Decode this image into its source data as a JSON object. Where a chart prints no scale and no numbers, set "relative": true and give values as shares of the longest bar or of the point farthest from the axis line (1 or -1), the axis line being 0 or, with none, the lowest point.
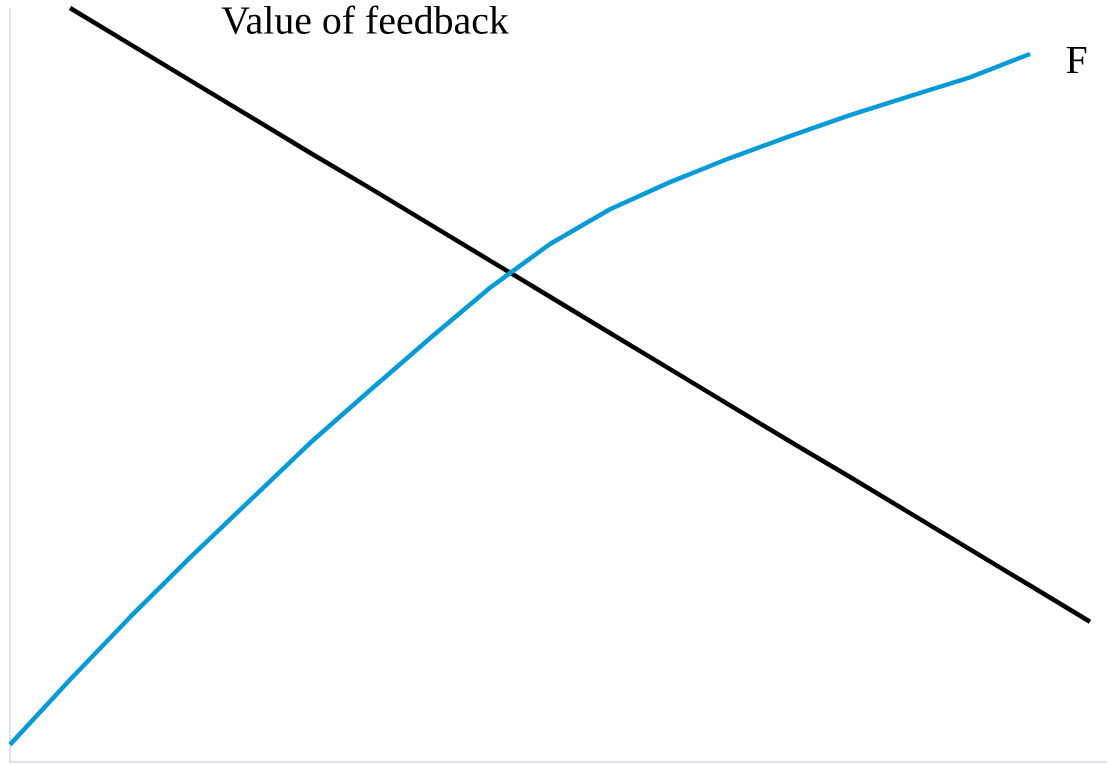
{
  "chart_data": {
    "type": "line",
    "relative": true,
    "categories": [
      null,
      null,
      null,
      null,
      null,
      null,
      null,
      null,
      null,
      null,
      null,
      null,
      null,
      null,
      null,
      null,
      null,
      null,
      null
    ],
    "series": [
      {
        "name": "Value of feedback",
        "color": "#000000",
        "values": [
          null,
          1.0,
          0.952,
          0.904,
          0.856,
          0.808,
          0.761,
          0.713,
          0.665,
          0.617,
          0.569,
          0.521,
          0.473,
          0.425,
          0.378,
          0.33,
          0.282,
          0.234,
          0.186
        ]
      },
      {
        "name": "F",
        "color": "#069ad6",
        "values": [
          0.023,
          0.109,
          0.192,
          0.271,
          0.347,
          0.423,
          0.493,
          0.562,
          0.629,
          0.687,
          0.733,
          0.769,
          0.801,
          0.83,
          0.858,
          0.883,
          0.908,
          0.939,
          null
        ]
      }
    ]
  }
}
